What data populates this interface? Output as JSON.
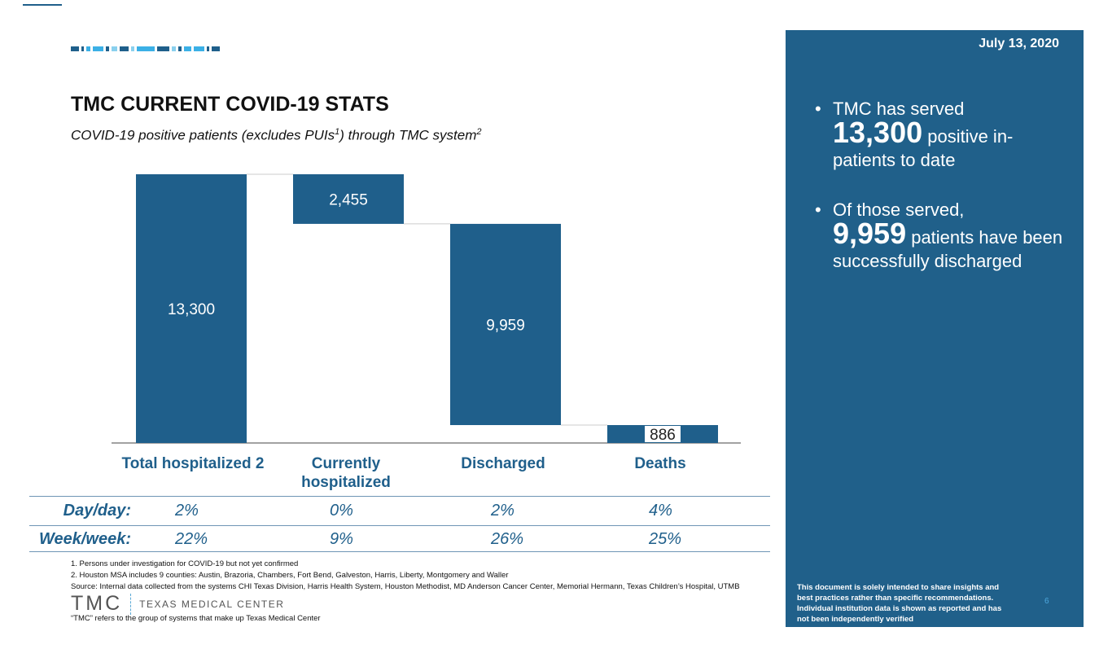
{
  "header": {
    "title": "TMC CURRENT COVID-19 STATS",
    "subtitle_a": "COVID-19 positive patients (excludes PUIs",
    "sup1": "1",
    "subtitle_b": ") through TMC system",
    "sup2": "2"
  },
  "chart_data": {
    "type": "bar",
    "subtype": "waterfall",
    "categories": [
      "Total hospitalized 2",
      "Currently hospitalized",
      "Discharged",
      "Deaths"
    ],
    "values": [
      13300,
      2455,
      9959,
      886
    ],
    "labels": [
      "13,300",
      "2,455",
      "9,959",
      "886"
    ],
    "bar_color": "#1f5f8b"
  },
  "table": {
    "rows": [
      {
        "label": "Day/day:",
        "values": [
          "2%",
          "0%",
          "2%",
          "4%"
        ]
      },
      {
        "label": "Week/week:",
        "values": [
          "22%",
          "9%",
          "26%",
          "25%"
        ]
      }
    ]
  },
  "notes": [
    "1.     Persons under investigation for COVID-19 but not yet confirmed",
    "2.     Houston MSA includes 9 counties: Austin, Brazoria, Chambers, Fort Bend, Galveston, Harris, Liberty, Montgomery and Waller",
    "Source: Internal data collected from the systems CHI Texas Division, Harris Health System, Houston Methodist, MD Anderson Cancer Center, Memorial Hermann, Texas Children’s Hospital, UTMB"
  ],
  "logo": {
    "abbr": "TMC",
    "name": "TEXAS MEDICAL CENTER"
  },
  "footnote": "“TMC” refers to the group of systems that make up Texas Medical Center",
  "panel": {
    "date": "July 13, 2020",
    "b1_pre": "TMC has served",
    "b1_num": "13,300",
    "b1_post": " positive in-patients to date",
    "b2_pre": "Of those served,",
    "b2_num": "9,959",
    "b2_post": " patients have been successfully discharged",
    "disclaimer": "This document is solely intended to share insights and best practices rather than specific recommendations. Individual institution data is shown as reported and has not been independently verified",
    "page": "6"
  },
  "colors": {
    "primary": "#1f5f8b",
    "panel": "#20608a",
    "light": "#3bb0e6",
    "pale": "#8ad0ee"
  }
}
